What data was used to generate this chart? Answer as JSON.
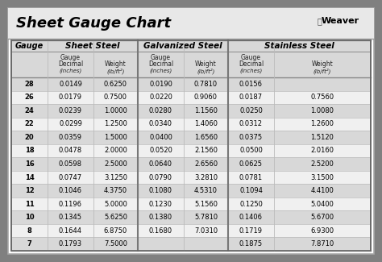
{
  "title": "Sheet Gauge Chart",
  "bg_outer": "#808080",
  "bg_white": "#ffffff",
  "bg_title": "#e8e8e8",
  "bg_header": "#d8d8d8",
  "bg_row_dark": "#d8d8d8",
  "bg_row_light": "#f0f0f0",
  "gauges": [
    28,
    26,
    24,
    22,
    20,
    18,
    16,
    14,
    12,
    11,
    10,
    8,
    7
  ],
  "sheet_steel_dec": [
    "0.0149",
    "0.0179",
    "0.0239",
    "0.0299",
    "0.0359",
    "0.0478",
    "0.0598",
    "0.0747",
    "0.1046",
    "0.1196",
    "0.1345",
    "0.1644",
    "0.1793"
  ],
  "sheet_steel_wt": [
    "0.6250",
    "0.7500",
    "1.0000",
    "1.2500",
    "1.5000",
    "2.0000",
    "2.5000",
    "3.1250",
    "4.3750",
    "5.0000",
    "5.6250",
    "6.8750",
    "7.5000"
  ],
  "galv_dec": [
    "0.0190",
    "0.0220",
    "0.0280",
    "0.0340",
    "0.0400",
    "0.0520",
    "0.0640",
    "0.0790",
    "0.1080",
    "0.1230",
    "0.1380",
    "0.1680",
    ""
  ],
  "galv_wt": [
    "0.7810",
    "0.9060",
    "1.1560",
    "1.4060",
    "1.6560",
    "2.1560",
    "2.6560",
    "3.2810",
    "4.5310",
    "5.1560",
    "5.7810",
    "7.0310",
    ""
  ],
  "ss_dec": [
    "0.0156",
    "0.0187",
    "0.0250",
    "0.0312",
    "0.0375",
    "0.0500",
    "0.0625",
    "0.0781",
    "0.1094",
    "0.1250",
    "0.1406",
    "0.1719",
    "0.1875"
  ],
  "ss_wt": [
    "",
    "0.7560",
    "1.0080",
    "1.2600",
    "1.5120",
    "2.0160",
    "2.5200",
    "3.1500",
    "4.4100",
    "5.0400",
    "5.6700",
    "6.9300",
    "7.8710"
  ],
  "title_fontsize": 13,
  "section_fontsize": 7.5,
  "subhdr_fontsize": 5.5,
  "data_fontsize": 6.0,
  "gauge_label_fontsize": 7.0
}
